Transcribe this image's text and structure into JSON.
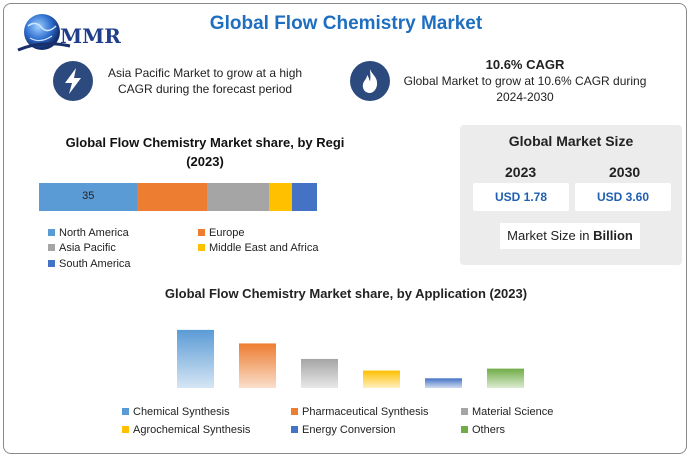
{
  "header": {
    "logo_text": "MMR",
    "title": "Global Flow Chemistry Market"
  },
  "features": {
    "left_text": "Asia Pacific Market to grow at a high CAGR during the forecast period",
    "left_icon": "lightning-icon",
    "right_heading": "10.6% CAGR",
    "right_text": "Global Market to grow at 10.6% CAGR during 2024-2030",
    "right_icon": "flame-icon"
  },
  "market_size": {
    "title": "Global Market Size",
    "year_start": "2023",
    "year_end": "2030",
    "value_start": "USD 1.78",
    "value_end": "USD 3.60",
    "unit_prefix": "Market Size in ",
    "unit_bold": "Billion"
  },
  "colors": {
    "brand": "#1f6fc0",
    "icon_bg": "#2c4a7e",
    "value_text": "#1f5fb0"
  },
  "chart_data": [
    {
      "type": "bar",
      "orientation": "horizontal-stacked",
      "title_line1": "Global Flow Chemistry Market share, by Regi",
      "title_line2": "(2023)",
      "series": [
        {
          "name": "North America",
          "value": 35,
          "color": "#5b9bd5",
          "label": "35"
        },
        {
          "name": "Europe",
          "value": 25,
          "color": "#ed7d31",
          "label": ""
        },
        {
          "name": "Asia Pacific",
          "value": 22,
          "color": "#a5a5a5",
          "label": ""
        },
        {
          "name": "Middle East and Africa",
          "value": 8,
          "color": "#ffc000",
          "label": ""
        },
        {
          "name": "South America",
          "value": 9,
          "color": "#4472c4",
          "label": ""
        }
      ],
      "legend_position": "bottom",
      "grid": false
    },
    {
      "type": "bar",
      "title": "Global Flow Chemistry Market share, by Application (2023)",
      "categories": [
        "Chemical Synthesis",
        "Pharmaceutical Synthesis",
        "Material Science",
        "Agrochemical Synthesis",
        "Energy Conversion",
        "Others"
      ],
      "values": [
        30,
        23,
        15,
        9,
        5,
        10
      ],
      "colors": [
        "#5b9bd5",
        "#ed7d31",
        "#a5a5a5",
        "#ffc000",
        "#4472c4",
        "#70ad47"
      ],
      "ylim": [
        0,
        32
      ],
      "legend_position": "bottom",
      "grid": false
    }
  ]
}
